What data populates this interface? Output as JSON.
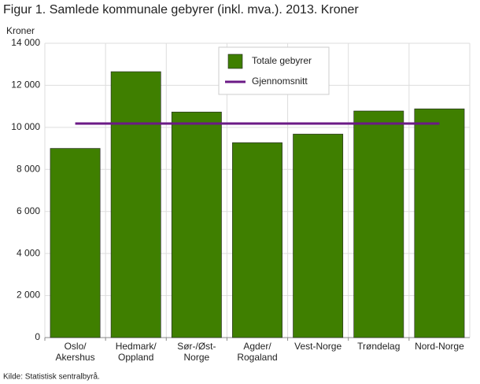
{
  "chart_data": {
    "type": "bar",
    "title": "Figur 1. Samlede kommunale gebyrer (inkl. mva.). 2013. Kroner",
    "y_label": "Kroner",
    "source": "Kilde: Statistisk sentralbyrå.",
    "categories": [
      [
        "Oslo/",
        "Akershus"
      ],
      [
        "Hedmark/",
        "Oppland"
      ],
      [
        "Sør-/Øst-",
        "Norge"
      ],
      [
        "Agder/",
        "Rogaland"
      ],
      [
        "Vest-Norge"
      ],
      [
        "Trøndelag"
      ],
      [
        "Nord-Norge"
      ]
    ],
    "series": [
      {
        "name": "Totale gebyrer",
        "color": "#3f7f00",
        "type": "bar",
        "values": [
          9000,
          12650,
          10730,
          9270,
          9680,
          10780,
          10880
        ]
      },
      {
        "name": "Gjennomsnitt",
        "color": "#6b1a86",
        "type": "line",
        "values": [
          10180,
          10180,
          10180,
          10180,
          10180,
          10180,
          10180
        ]
      }
    ],
    "ylim": [
      0,
      14000
    ],
    "yticks": [
      0,
      {
        "value": 2000,
        "label": "2 000"
      },
      {
        "value": 4000,
        "label": "4 000"
      },
      {
        "value": 6000,
        "label": "6 000"
      },
      {
        "value": 8000,
        "label": "8 000"
      },
      {
        "value": 10000,
        "label": "10 000"
      },
      {
        "value": 12000,
        "label": "12 000"
      },
      {
        "value": 14000,
        "label": "14 000"
      }
    ],
    "grid": true,
    "legend": "top-center"
  }
}
